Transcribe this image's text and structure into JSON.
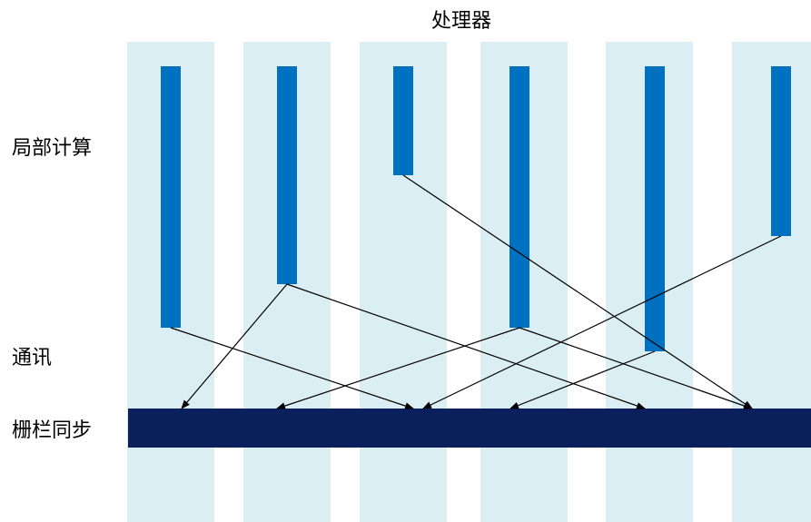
{
  "title": "处理器",
  "phase_labels": {
    "local_compute": "局部计算",
    "communication": "通讯",
    "barrier_sync": "栅栏同步"
  },
  "processor_count": 6,
  "colors": {
    "lane_background": "#daeef3",
    "compute_bar": "#0070c0",
    "barrier": "#0b1f5c",
    "arrow": "#000000",
    "text": "#000000"
  }
}
